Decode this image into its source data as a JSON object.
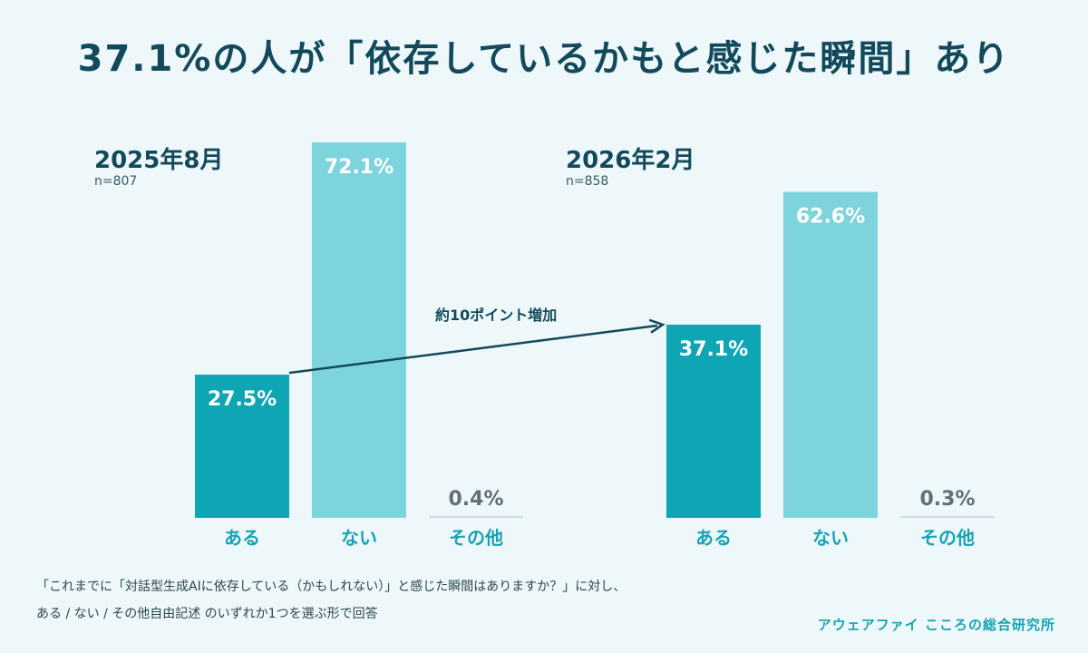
{
  "title": "37.1%の人が「依存しているかもと感じた瞬間」あり",
  "colors": {
    "aru": "#0ea5b5",
    "nai": "#7dd4dd",
    "other_line": "#c9dde2",
    "other_text": "#5f7076",
    "axis_label": "#17a3b4",
    "arrow": "#124a5c"
  },
  "annotation": "約10ポイント増加",
  "chart_data": [
    {
      "type": "bar",
      "title": "2025年8月",
      "n": "n=807",
      "categories": [
        "ある",
        "ない",
        "その他"
      ],
      "values": [
        27.5,
        72.1,
        0.4
      ],
      "value_labels": [
        "27.5%",
        "72.1%",
        "0.4%"
      ],
      "ylim": [
        0,
        72.1
      ]
    },
    {
      "type": "bar",
      "title": "2026年2月",
      "n": "n=858",
      "categories": [
        "ある",
        "ない",
        "その他"
      ],
      "values": [
        37.1,
        62.6,
        0.3
      ],
      "value_labels": [
        "37.1%",
        "62.6%",
        "0.3%"
      ],
      "ylim": [
        0,
        72.1
      ]
    }
  ],
  "footnote": {
    "line1": "「これまでに「対話型生成AIに依存している（かもしれない）」と感じた瞬間はありますか？」に対し、",
    "line2": "ある / ない / その他自由記述 のいずれか1つを選ぶ形で回答"
  },
  "brand": "アウェアファイ こころの総合研究所"
}
